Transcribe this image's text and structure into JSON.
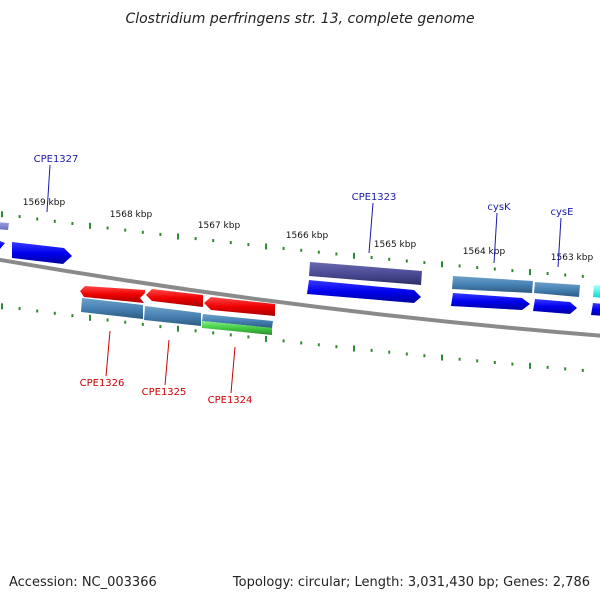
{
  "title": "Clostridium perfringens str. 13, complete genome",
  "footer": {
    "accession": "Accession: NC_003366",
    "summary": "Topology: circular; Length: 3,031,430 bp; Genes: 2,786"
  },
  "ticks": [
    "1569 kbp",
    "1568 kbp",
    "1567 kbp",
    "1566 kbp",
    "1565 kbp",
    "1564 kbp",
    "1563 kbp"
  ],
  "genes_top": [
    "CPE1327",
    "CPE1323",
    "cysK",
    "cysE"
  ],
  "genes_bottom": [
    "CPE1326",
    "CPE1325",
    "CPE1324"
  ],
  "colors": {
    "backbone": "#888888",
    "tick": "#2e8b2e",
    "forward_cds": "#0000dd",
    "reverse_cds": "#ee0000",
    "gene_steelblue": "#4682b4",
    "gene_slate": "#4b4b96",
    "gene_green": "#44cc44",
    "label_top": "#1a1aaa",
    "label_bottom": "#cc0000",
    "cyan_edge": "#00e5e5"
  }
}
